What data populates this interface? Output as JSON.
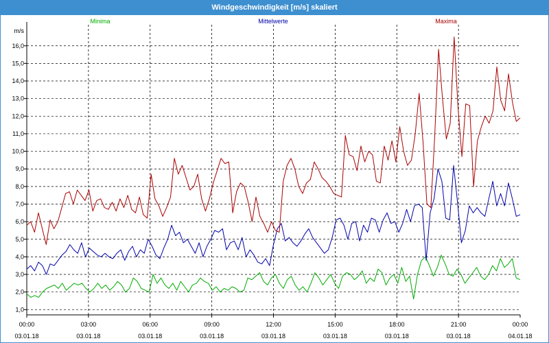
{
  "window": {
    "title": "Windgeschwindigkeit [m/s] skaliert"
  },
  "chart_data": {
    "type": "line",
    "title": "Windgeschwindigkeit [m/s] skaliert",
    "ylabel": "m/s",
    "xlabel": "",
    "ylim": [
      0.7,
      17.2
    ],
    "xlim": [
      0,
      24
    ],
    "grid": true,
    "legend_placement": "top",
    "y_ticks": [
      "1,0",
      "2,0",
      "3,0",
      "4,0",
      "5,0",
      "6,0",
      "7,0",
      "8,0",
      "9,0",
      "10,0",
      "11,0",
      "12,0",
      "13,0",
      "14,0",
      "15,0",
      "16,0"
    ],
    "x_ticks": [
      {
        "time": "00:00",
        "date": "03.01.18"
      },
      {
        "time": "03:00",
        "date": "03.01.18"
      },
      {
        "time": "06:00",
        "date": "03.01.18"
      },
      {
        "time": "09:00",
        "date": "03.01.18"
      },
      {
        "time": "12:00",
        "date": "03.01.18"
      },
      {
        "time": "15:00",
        "date": "03.01.18"
      },
      {
        "time": "18:00",
        "date": "03.01.18"
      },
      {
        "time": "21:00",
        "date": "03.01.18"
      },
      {
        "time": "00:00",
        "date": "04.01.18"
      }
    ],
    "series": [
      {
        "name": "Minima",
        "color": "#00aa00",
        "values": [
          1.9,
          1.7,
          1.8,
          1.7,
          2.0,
          2.2,
          2.3,
          2.4,
          2.2,
          2.5,
          2.1,
          2.3,
          2.5,
          2.4,
          2.5,
          2.2,
          2.0,
          2.2,
          2.5,
          2.2,
          2.4,
          2.1,
          2.3,
          2.6,
          2.4,
          2.0,
          2.2,
          2.8,
          2.6,
          2.2,
          2.1,
          2.0,
          3.0,
          2.5,
          2.8,
          2.4,
          2.2,
          2.5,
          2.1,
          2.6,
          2.3,
          2.0,
          2.4,
          2.5,
          2.8,
          2.6,
          2.5,
          2.1,
          2.3,
          2.0,
          2.2,
          2.1,
          2.3,
          2.2,
          2.0,
          2.1,
          2.8,
          2.7,
          2.9,
          3.1,
          2.6,
          2.4,
          2.8,
          3.0,
          2.5,
          2.2,
          2.7,
          2.9,
          2.4,
          2.1,
          2.3,
          2.0,
          2.5,
          3.1,
          2.8,
          2.4,
          2.7,
          3.0,
          2.5,
          2.2,
          2.9,
          3.1,
          3.0,
          2.7,
          2.9,
          3.2,
          2.5,
          2.8,
          2.6,
          3.3,
          3.1,
          2.4,
          2.8,
          3.0,
          2.5,
          3.4,
          2.6,
          2.9,
          1.6,
          3.0,
          3.8,
          4.0,
          3.5,
          2.9,
          3.4,
          4.1,
          3.6,
          3.0,
          2.9,
          3.3,
          3.0,
          2.5,
          2.8,
          3.1,
          3.4,
          2.9,
          2.7,
          3.0,
          3.5,
          3.2,
          3.9,
          3.4,
          3.6,
          3.9,
          2.8,
          2.7
        ],
        "stroke_width": 1
      },
      {
        "name": "Mittelwerte",
        "color": "#0000aa",
        "values": [
          3.3,
          3.5,
          3.2,
          3.7,
          3.5,
          3.0,
          3.6,
          3.5,
          3.8,
          4.1,
          4.3,
          4.7,
          4.4,
          4.2,
          4.8,
          4.0,
          4.5,
          4.3,
          4.1,
          4.0,
          4.2,
          4.0,
          3.9,
          4.2,
          4.4,
          3.8,
          4.3,
          4.6,
          4.0,
          4.4,
          4.2,
          5.0,
          4.6,
          4.1,
          3.9,
          4.5,
          5.0,
          5.8,
          5.2,
          5.4,
          4.8,
          5.0,
          4.6,
          4.2,
          4.8,
          4.0,
          4.6,
          5.0,
          5.5,
          5.4,
          5.6,
          4.4,
          4.8,
          4.9,
          4.4,
          5.1,
          4.0,
          4.4,
          4.1,
          3.7,
          3.6,
          3.9,
          3.5,
          4.7,
          5.6,
          5.9,
          4.9,
          5.1,
          4.8,
          4.6,
          4.9,
          5.3,
          5.6,
          5.1,
          4.8,
          4.5,
          4.2,
          4.4,
          5.1,
          6.1,
          6.2,
          5.8,
          5.0,
          5.9,
          6.0,
          4.9,
          5.8,
          5.4,
          6.2,
          6.1,
          5.4,
          6.1,
          6.5,
          5.9,
          6.0,
          5.4,
          5.9,
          6.7,
          6.0,
          6.9,
          7.0,
          6.8,
          3.8,
          6.5,
          7.3,
          9.0,
          8.3,
          6.2,
          6.1,
          9.2,
          7.1,
          4.8,
          5.5,
          6.9,
          6.5,
          6.8,
          6.5,
          6.3,
          7.3,
          8.3,
          6.9,
          7.6,
          6.9,
          8.2,
          7.3,
          6.3,
          6.4
        ],
        "stroke_width": 1
      },
      {
        "name": "Maxima",
        "color": "#aa0000",
        "values": [
          5.8,
          6.0,
          5.4,
          6.5,
          5.6,
          4.7,
          6.1,
          5.6,
          6.0,
          6.8,
          7.6,
          7.7,
          7.0,
          7.8,
          7.5,
          7.2,
          7.8,
          6.6,
          7.2,
          7.3,
          6.8,
          6.7,
          7.1,
          6.6,
          7.3,
          6.8,
          7.5,
          6.7,
          6.5,
          7.4,
          6.4,
          6.2,
          8.7,
          7.3,
          6.9,
          6.3,
          6.8,
          7.4,
          9.6,
          8.7,
          9.2,
          8.5,
          7.8,
          8.0,
          8.7,
          7.3,
          6.6,
          7.3,
          8.2,
          8.9,
          9.6,
          9.3,
          9.4,
          6.5,
          7.7,
          8.2,
          8.0,
          7.1,
          6.0,
          7.4,
          6.3,
          5.9,
          5.4,
          6.0,
          5.5,
          5.4,
          8.3,
          9.2,
          9.6,
          9.0,
          8.0,
          7.6,
          8.2,
          8.4,
          9.4,
          9.0,
          8.5,
          8.3,
          8.0,
          7.6,
          7.5,
          7.4,
          10.9,
          9.8,
          9.7,
          8.9,
          10.3,
          9.4,
          10.0,
          9.8,
          8.3,
          8.2,
          10.3,
          9.5,
          10.6,
          9.4,
          11.4,
          10.0,
          9.2,
          9.5,
          11.0,
          13.3,
          10.5,
          7.0,
          6.8,
          10.8,
          15.8,
          13.0,
          10.7,
          11.6,
          16.5,
          12.5,
          9.7,
          12.7,
          12.6,
          8.0,
          10.6,
          11.4,
          12.0,
          11.6,
          12.3,
          14.8,
          12.9,
          12.3,
          14.4,
          12.8,
          11.7,
          11.9
        ],
        "stroke_width": 1
      }
    ]
  }
}
